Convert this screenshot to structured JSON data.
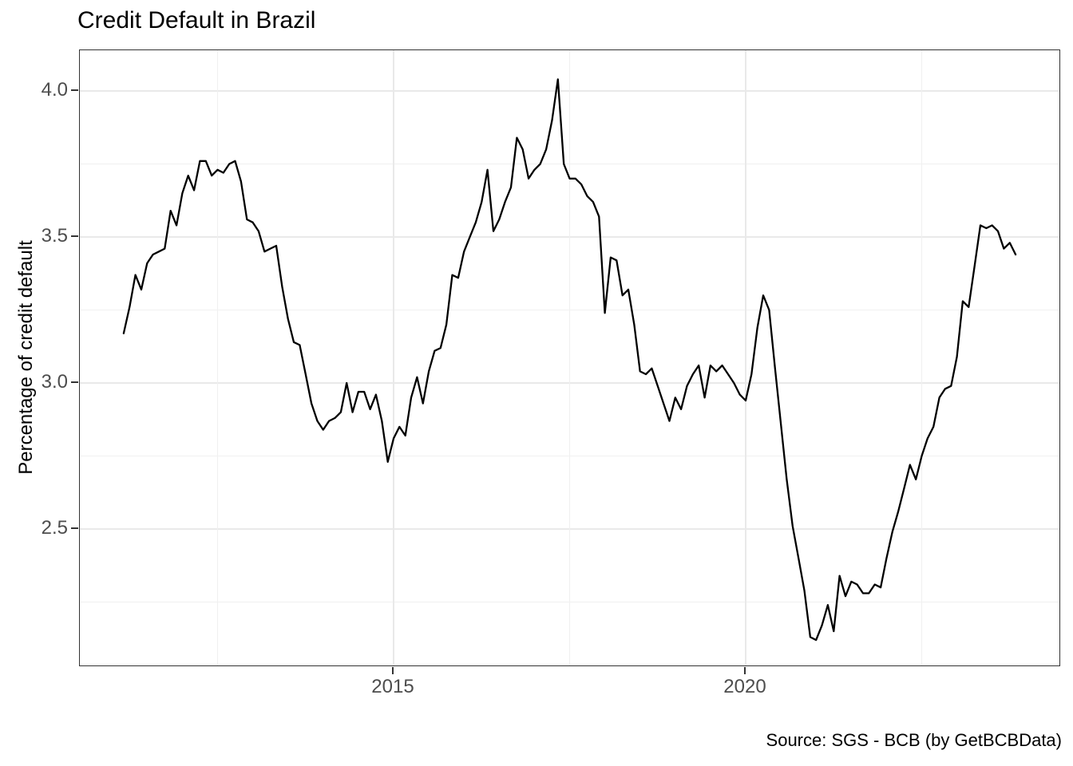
{
  "chart_data": {
    "type": "line",
    "title": "Credit Default in Brazil",
    "xlabel": "",
    "ylabel": "Percentage of credit default",
    "caption": "Source: SGS - BCB (by GetBCBData)",
    "line_color": "#000000",
    "background_color": "#ffffff",
    "grid": true,
    "legend": "none",
    "xlim": [
      2010.53,
      2024.47
    ],
    "ylim": [
      2.03,
      4.14
    ],
    "x_ticks": [
      {
        "value": 2015,
        "label": "2015"
      },
      {
        "value": 2020,
        "label": "2020"
      }
    ],
    "x_minor_ticks": [
      2012.5,
      2017.5,
      2022.5
    ],
    "y_ticks": [
      {
        "value": 4.0,
        "label": "4.0"
      },
      {
        "value": 3.5,
        "label": "3.5"
      },
      {
        "value": 3.0,
        "label": "3.0"
      },
      {
        "value": 2.5,
        "label": "2.5"
      }
    ],
    "y_minor_ticks": [
      3.75,
      3.25,
      2.75,
      2.25
    ],
    "series": [
      {
        "name": "credit-default-percentage",
        "frequency": "monthly",
        "start": "2011-03",
        "end": "2023-11",
        "values": [
          3.17,
          3.26,
          3.37,
          3.32,
          3.41,
          3.44,
          3.45,
          3.46,
          3.59,
          3.54,
          3.65,
          3.71,
          3.66,
          3.76,
          3.76,
          3.71,
          3.73,
          3.72,
          3.75,
          3.76,
          3.69,
          3.56,
          3.55,
          3.52,
          3.45,
          3.46,
          3.47,
          3.33,
          3.22,
          3.14,
          3.13,
          3.03,
          2.93,
          2.87,
          2.84,
          2.87,
          2.88,
          2.9,
          3.0,
          2.9,
          2.97,
          2.97,
          2.91,
          2.96,
          2.87,
          2.73,
          2.81,
          2.85,
          2.82,
          2.95,
          3.02,
          2.93,
          3.04,
          3.11,
          3.12,
          3.2,
          3.37,
          3.36,
          3.45,
          3.5,
          3.55,
          3.62,
          3.73,
          3.52,
          3.56,
          3.62,
          3.67,
          3.84,
          3.8,
          3.7,
          3.73,
          3.75,
          3.8,
          3.9,
          4.04,
          3.75,
          3.7,
          3.7,
          3.68,
          3.64,
          3.62,
          3.57,
          3.24,
          3.43,
          3.42,
          3.3,
          3.32,
          3.2,
          3.04,
          3.03,
          3.05,
          2.99,
          2.93,
          2.87,
          2.95,
          2.91,
          2.99,
          3.03,
          3.06,
          2.95,
          3.06,
          3.04,
          3.06,
          3.03,
          3.0,
          2.96,
          2.94,
          3.03,
          3.19,
          3.3,
          3.25,
          3.05,
          2.86,
          2.67,
          2.51,
          2.4,
          2.29,
          2.13,
          2.12,
          2.17,
          2.24,
          2.15,
          2.34,
          2.27,
          2.32,
          2.31,
          2.28,
          2.28,
          2.31,
          2.3,
          2.4,
          2.49,
          2.56,
          2.64,
          2.72,
          2.67,
          2.75,
          2.81,
          2.85,
          2.95,
          2.98,
          2.99,
          3.09,
          3.28,
          3.26,
          3.4,
          3.54,
          3.53,
          3.54,
          3.52,
          3.46,
          3.48,
          3.44
        ]
      }
    ]
  }
}
